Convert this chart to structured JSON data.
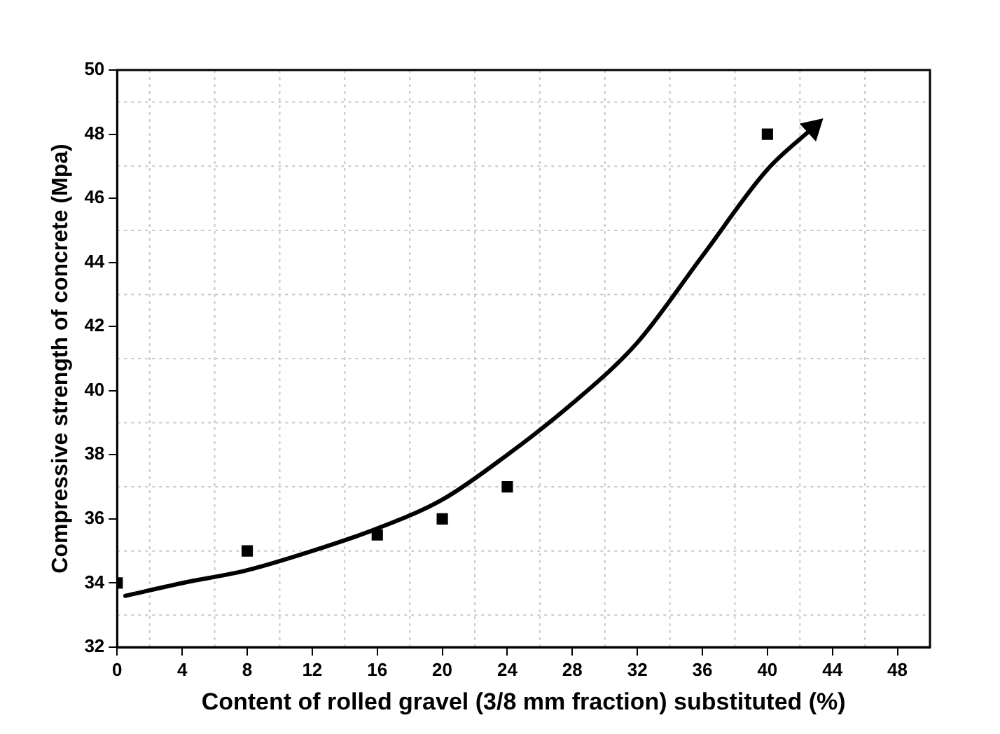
{
  "chart_data": {
    "type": "scatter",
    "xlabel": "Content of rolled gravel (3/8 mm fraction) substituted (%)",
    "ylabel": "Compressive strength of concrete (Mpa)",
    "xlim": [
      0,
      50
    ],
    "xticks": [
      0,
      4,
      8,
      12,
      16,
      20,
      24,
      28,
      32,
      36,
      40,
      44,
      48
    ],
    "ylim": [
      32,
      50
    ],
    "yticks": [
      32,
      34,
      36,
      38,
      40,
      42,
      44,
      46,
      48,
      50
    ],
    "grid": true,
    "legend": false,
    "series": [
      {
        "color": "#000000",
        "marker": "square",
        "x": [
          0,
          8,
          16,
          20,
          24,
          40
        ],
        "values": [
          34,
          35,
          35.5,
          36,
          37,
          48
        ]
      },
      {
        "type": "line",
        "color": "#000000",
        "marker": "none",
        "line_style": "solid",
        "x": [
          0.5,
          4,
          8,
          12,
          16,
          20,
          24,
          28,
          32,
          36,
          40,
          42.8
        ],
        "values": [
          33.6,
          34.0,
          34.4,
          35.0,
          35.7,
          36.6,
          38.0,
          39.6,
          41.5,
          44.2,
          46.9,
          48.2
        ]
      }
    ]
  }
}
